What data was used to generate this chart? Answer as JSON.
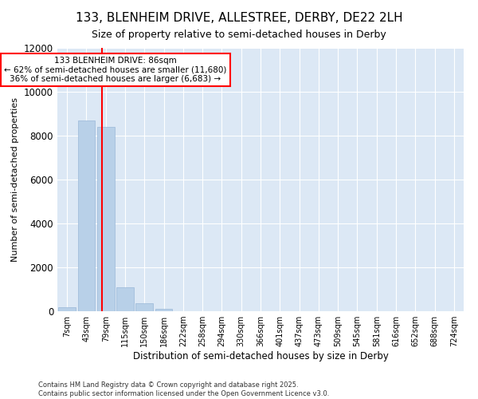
{
  "title": "133, BLENHEIM DRIVE, ALLESTREE, DERBY, DE22 2LH",
  "subtitle": "Size of property relative to semi-detached houses in Derby",
  "xlabel": "Distribution of semi-detached houses by size in Derby",
  "ylabel": "Number of semi-detached properties",
  "bar_labels": [
    "7sqm",
    "43sqm",
    "79sqm",
    "115sqm",
    "150sqm",
    "186sqm",
    "222sqm",
    "258sqm",
    "294sqm",
    "330sqm",
    "366sqm",
    "401sqm",
    "437sqm",
    "473sqm",
    "509sqm",
    "545sqm",
    "581sqm",
    "616sqm",
    "652sqm",
    "688sqm",
    "724sqm"
  ],
  "bar_values": [
    200,
    8700,
    8400,
    1100,
    350,
    100,
    0,
    0,
    0,
    0,
    0,
    0,
    0,
    0,
    0,
    0,
    0,
    0,
    0,
    0,
    0
  ],
  "bar_color": "#b8d0e8",
  "bar_edgecolor": "#9ab8d8",
  "vline_x": 1.82,
  "vline_color": "red",
  "annotation_title": "133 BLENHEIM DRIVE: 86sqm",
  "annotation_line1": "← 62% of semi-detached houses are smaller (11,680)",
  "annotation_line2": "36% of semi-detached houses are larger (6,683) →",
  "ylim": [
    0,
    12000
  ],
  "yticks": [
    0,
    2000,
    4000,
    6000,
    8000,
    10000,
    12000
  ],
  "footer_line1": "Contains HM Land Registry data © Crown copyright and database right 2025.",
  "footer_line2": "Contains public sector information licensed under the Open Government Licence v3.0.",
  "bg_color": "#ffffff",
  "plot_bg_color": "#dce8f5"
}
